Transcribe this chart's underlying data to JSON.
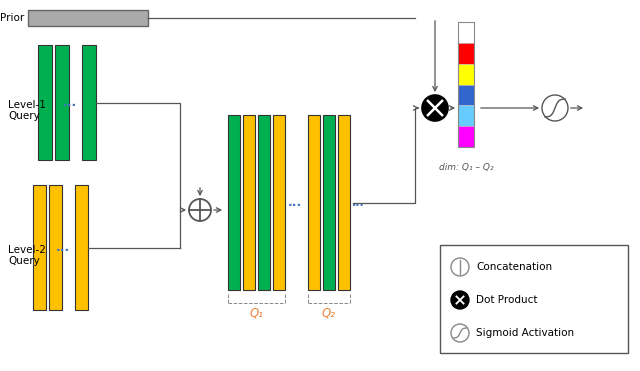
{
  "bg_color": "#ffffff",
  "green_color": "#00b050",
  "gold_color": "#ffc000",
  "gray_color": "#aaaaaa",
  "line_color": "#555555",
  "blue_dots_color": "#4472c4",
  "orange_text_color": "#ed7d31",
  "legend_text_color": "#000000",
  "prior_label": "Prior",
  "level1_label": "Level-1\nQuery",
  "level2_label": "Level-2\nQuery",
  "q1_label": "Q₁",
  "q2_label": "Q₂",
  "dim_label": "dim: Q₁ – Q₂",
  "colorbar_colors": [
    "#ffffff",
    "#ff0000",
    "#ffff00",
    "#3366cc",
    "#66ccff",
    "#ff00ff"
  ]
}
